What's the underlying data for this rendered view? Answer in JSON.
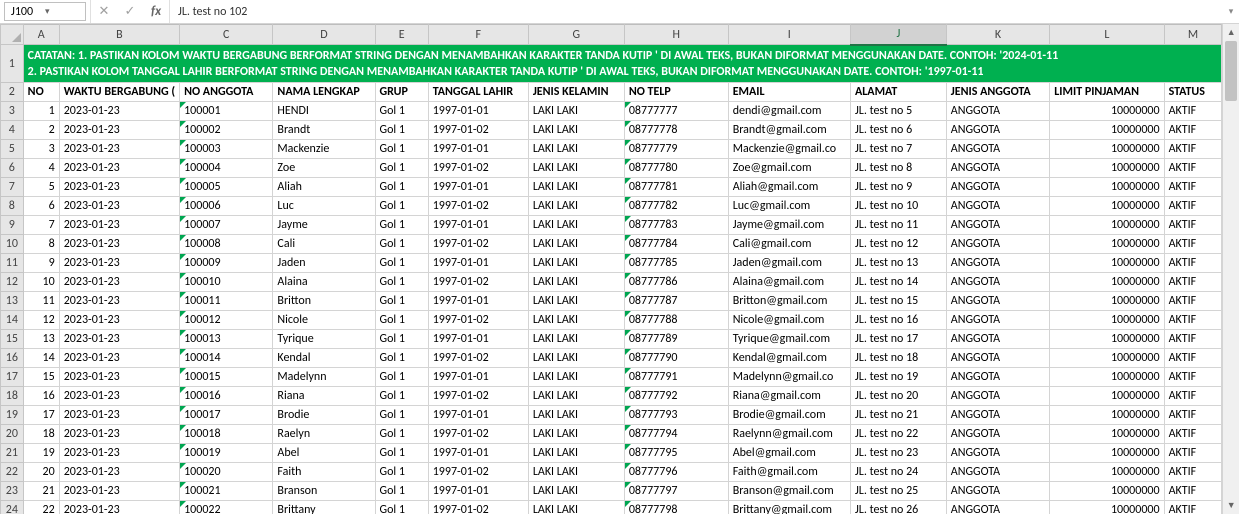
{
  "formula_bar": {
    "name_box": "J100",
    "cancel_glyph": "✕",
    "confirm_glyph": "✓",
    "fx_label": "fx",
    "value": "JL. test no 102",
    "expand_glyph": "▾"
  },
  "active_cell": {
    "col": "J",
    "row": 100
  },
  "columns": [
    {
      "letter": "A",
      "width": 38
    },
    {
      "letter": "B",
      "width": 118
    },
    {
      "letter": "C",
      "width": 96
    },
    {
      "letter": "D",
      "width": 104
    },
    {
      "letter": "E",
      "width": 56
    },
    {
      "letter": "F",
      "width": 102
    },
    {
      "letter": "G",
      "width": 98
    },
    {
      "letter": "H",
      "width": 112
    },
    {
      "letter": "I",
      "width": 124
    },
    {
      "letter": "J",
      "width": 100
    },
    {
      "letter": "K",
      "width": 106
    },
    {
      "letter": "L",
      "width": 118
    },
    {
      "letter": "M",
      "width": 60
    }
  ],
  "catatan_lines": [
    "CATATAN: 1. PASTIKAN KOLOM WAKTU BERGABUNG BERFORMAT STRING DENGAN MENAMBAHKAN KARAKTER TANDA KUTIP ' DI AWAL TEKS, BUKAN DIFORMAT MENGGUNAKAN DATE. CONTOH: '2024-01-11",
    "2. PASTIKAN KOLOM TANGGAL LAHIR BERFORMAT STRING DENGAN MENAMBAHKAN KARAKTER TANDA KUTIP ' DI AWAL TEKS, BUKAN DIFORMAT MENGGUNAKAN DATE. CONTOH: '1997-01-11"
  ],
  "headers": [
    "NO",
    "WAKTU BERGABUNG (",
    "NO ANGGOTA",
    "NAMA LENGKAP",
    "GRUP",
    "TANGGAL LAHIR",
    "JENIS KELAMIN",
    "NO TELP",
    "EMAIL",
    "ALAMAT",
    "JENIS ANGGOTA",
    "LIMIT PINJAMAN",
    "STATUS"
  ],
  "rows": [
    {
      "no": 1,
      "waktu": "2023-01-23",
      "noang": "100001",
      "nama": "HENDI",
      "grup": "Gol 1",
      "lahir": "1997-01-01",
      "jk": "LAKI LAKI",
      "telp": "08777777",
      "email": "dendi@gmail.com",
      "alamat": "JL. test no 5",
      "jenis": "ANGGOTA",
      "limit": "10000000",
      "status": "AKTIF"
    },
    {
      "no": 2,
      "waktu": "2023-01-23",
      "noang": "100002",
      "nama": "Brandt",
      "grup": "Gol 1",
      "lahir": "1997-01-02",
      "jk": "LAKI LAKI",
      "telp": "08777778",
      "email": "Brandt@gmail.com",
      "alamat": "JL. test no 6",
      "jenis": "ANGGOTA",
      "limit": "10000000",
      "status": "AKTIF"
    },
    {
      "no": 3,
      "waktu": "2023-01-23",
      "noang": "100003",
      "nama": "Mackenzie",
      "grup": "Gol 1",
      "lahir": "1997-01-01",
      "jk": "LAKI LAKI",
      "telp": "08777779",
      "email": "Mackenzie@gmail.co",
      "alamat": "JL. test no 7",
      "jenis": "ANGGOTA",
      "limit": "10000000",
      "status": "AKTIF"
    },
    {
      "no": 4,
      "waktu": "2023-01-23",
      "noang": "100004",
      "nama": "Zoe",
      "grup": "Gol 1",
      "lahir": "1997-01-02",
      "jk": "LAKI LAKI",
      "telp": "08777780",
      "email": "Zoe@gmail.com",
      "alamat": "JL. test no 8",
      "jenis": "ANGGOTA",
      "limit": "10000000",
      "status": "AKTIF"
    },
    {
      "no": 5,
      "waktu": "2023-01-23",
      "noang": "100005",
      "nama": "Aliah",
      "grup": "Gol 1",
      "lahir": "1997-01-01",
      "jk": "LAKI LAKI",
      "telp": "08777781",
      "email": "Aliah@gmail.com",
      "alamat": "JL. test no 9",
      "jenis": "ANGGOTA",
      "limit": "10000000",
      "status": "AKTIF"
    },
    {
      "no": 6,
      "waktu": "2023-01-23",
      "noang": "100006",
      "nama": "Luc",
      "grup": "Gol 1",
      "lahir": "1997-01-02",
      "jk": "LAKI LAKI",
      "telp": "08777782",
      "email": "Luc@gmail.com",
      "alamat": "JL. test no 10",
      "jenis": "ANGGOTA",
      "limit": "10000000",
      "status": "AKTIF"
    },
    {
      "no": 7,
      "waktu": "2023-01-23",
      "noang": "100007",
      "nama": "Jayme",
      "grup": "Gol 1",
      "lahir": "1997-01-01",
      "jk": "LAKI LAKI",
      "telp": "08777783",
      "email": "Jayme@gmail.com",
      "alamat": "JL. test no 11",
      "jenis": "ANGGOTA",
      "limit": "10000000",
      "status": "AKTIF"
    },
    {
      "no": 8,
      "waktu": "2023-01-23",
      "noang": "100008",
      "nama": "Cali",
      "grup": "Gol 1",
      "lahir": "1997-01-02",
      "jk": "LAKI LAKI",
      "telp": "08777784",
      "email": "Cali@gmail.com",
      "alamat": "JL. test no 12",
      "jenis": "ANGGOTA",
      "limit": "10000000",
      "status": "AKTIF"
    },
    {
      "no": 9,
      "waktu": "2023-01-23",
      "noang": "100009",
      "nama": "Jaden",
      "grup": "Gol 1",
      "lahir": "1997-01-01",
      "jk": "LAKI LAKI",
      "telp": "08777785",
      "email": "Jaden@gmail.com",
      "alamat": "JL. test no 13",
      "jenis": "ANGGOTA",
      "limit": "10000000",
      "status": "AKTIF"
    },
    {
      "no": 10,
      "waktu": "2023-01-23",
      "noang": "100010",
      "nama": "Alaina",
      "grup": "Gol 1",
      "lahir": "1997-01-02",
      "jk": "LAKI LAKI",
      "telp": "08777786",
      "email": "Alaina@gmail.com",
      "alamat": "JL. test no 14",
      "jenis": "ANGGOTA",
      "limit": "10000000",
      "status": "AKTIF"
    },
    {
      "no": 11,
      "waktu": "2023-01-23",
      "noang": "100011",
      "nama": "Britton",
      "grup": "Gol 1",
      "lahir": "1997-01-01",
      "jk": "LAKI LAKI",
      "telp": "08777787",
      "email": "Britton@gmail.com",
      "alamat": "JL. test no 15",
      "jenis": "ANGGOTA",
      "limit": "10000000",
      "status": "AKTIF"
    },
    {
      "no": 12,
      "waktu": "2023-01-23",
      "noang": "100012",
      "nama": "Nicole",
      "grup": "Gol 1",
      "lahir": "1997-01-02",
      "jk": "LAKI LAKI",
      "telp": "08777788",
      "email": "Nicole@gmail.com",
      "alamat": "JL. test no 16",
      "jenis": "ANGGOTA",
      "limit": "10000000",
      "status": "AKTIF"
    },
    {
      "no": 13,
      "waktu": "2023-01-23",
      "noang": "100013",
      "nama": "Tyrique",
      "grup": "Gol 1",
      "lahir": "1997-01-01",
      "jk": "LAKI LAKI",
      "telp": "08777789",
      "email": "Tyrique@gmail.com",
      "alamat": "JL. test no 17",
      "jenis": "ANGGOTA",
      "limit": "10000000",
      "status": "AKTIF"
    },
    {
      "no": 14,
      "waktu": "2023-01-23",
      "noang": "100014",
      "nama": "Kendal",
      "grup": "Gol 1",
      "lahir": "1997-01-02",
      "jk": "LAKI LAKI",
      "telp": "08777790",
      "email": "Kendal@gmail.com",
      "alamat": "JL. test no 18",
      "jenis": "ANGGOTA",
      "limit": "10000000",
      "status": "AKTIF"
    },
    {
      "no": 15,
      "waktu": "2023-01-23",
      "noang": "100015",
      "nama": "Madelynn",
      "grup": "Gol 1",
      "lahir": "1997-01-01",
      "jk": "LAKI LAKI",
      "telp": "08777791",
      "email": "Madelynn@gmail.co",
      "alamat": "JL. test no 19",
      "jenis": "ANGGOTA",
      "limit": "10000000",
      "status": "AKTIF"
    },
    {
      "no": 16,
      "waktu": "2023-01-23",
      "noang": "100016",
      "nama": "Riana",
      "grup": "Gol 1",
      "lahir": "1997-01-02",
      "jk": "LAKI LAKI",
      "telp": "08777792",
      "email": "Riana@gmail.com",
      "alamat": "JL. test no 20",
      "jenis": "ANGGOTA",
      "limit": "10000000",
      "status": "AKTIF"
    },
    {
      "no": 17,
      "waktu": "2023-01-23",
      "noang": "100017",
      "nama": "Brodie",
      "grup": "Gol 1",
      "lahir": "1997-01-01",
      "jk": "LAKI LAKI",
      "telp": "08777793",
      "email": "Brodie@gmail.com",
      "alamat": "JL. test no 21",
      "jenis": "ANGGOTA",
      "limit": "10000000",
      "status": "AKTIF"
    },
    {
      "no": 18,
      "waktu": "2023-01-23",
      "noang": "100018",
      "nama": "Raelyn",
      "grup": "Gol 1",
      "lahir": "1997-01-02",
      "jk": "LAKI LAKI",
      "telp": "08777794",
      "email": "Raelynn@gmail.com",
      "alamat": "JL. test no 22",
      "jenis": "ANGGOTA",
      "limit": "10000000",
      "status": "AKTIF"
    },
    {
      "no": 19,
      "waktu": "2023-01-23",
      "noang": "100019",
      "nama": "Abel",
      "grup": "Gol 1",
      "lahir": "1997-01-01",
      "jk": "LAKI LAKI",
      "telp": "08777795",
      "email": "Abel@gmail.com",
      "alamat": "JL. test no 23",
      "jenis": "ANGGOTA",
      "limit": "10000000",
      "status": "AKTIF"
    },
    {
      "no": 20,
      "waktu": "2023-01-23",
      "noang": "100020",
      "nama": "Faith",
      "grup": "Gol 1",
      "lahir": "1997-01-02",
      "jk": "LAKI LAKI",
      "telp": "08777796",
      "email": "Faith@gmail.com",
      "alamat": "JL. test no 24",
      "jenis": "ANGGOTA",
      "limit": "10000000",
      "status": "AKTIF"
    },
    {
      "no": 21,
      "waktu": "2023-01-23",
      "noang": "100021",
      "nama": "Branson",
      "grup": "Gol 1",
      "lahir": "1997-01-01",
      "jk": "LAKI LAKI",
      "telp": "08777797",
      "email": "Branson@gmail.com",
      "alamat": "JL. test no 25",
      "jenis": "ANGGOTA",
      "limit": "10000000",
      "status": "AKTIF"
    },
    {
      "no": 22,
      "waktu": "2023-01-23",
      "noang": "100022",
      "nama": "Brittany",
      "grup": "Gol 1",
      "lahir": "1997-01-02",
      "jk": "LAKI LAKI",
      "telp": "08777798",
      "email": "Brittany@gmail.com",
      "alamat": "JL. test no 26",
      "jenis": "ANGGOTA",
      "limit": "10000000",
      "status": "AKTIF"
    }
  ],
  "colors": {
    "catatan_bg": "#00b050",
    "header_bg": "#e6e6e6",
    "grid_border": "#d4d4d4",
    "selection_border": "#217346"
  }
}
